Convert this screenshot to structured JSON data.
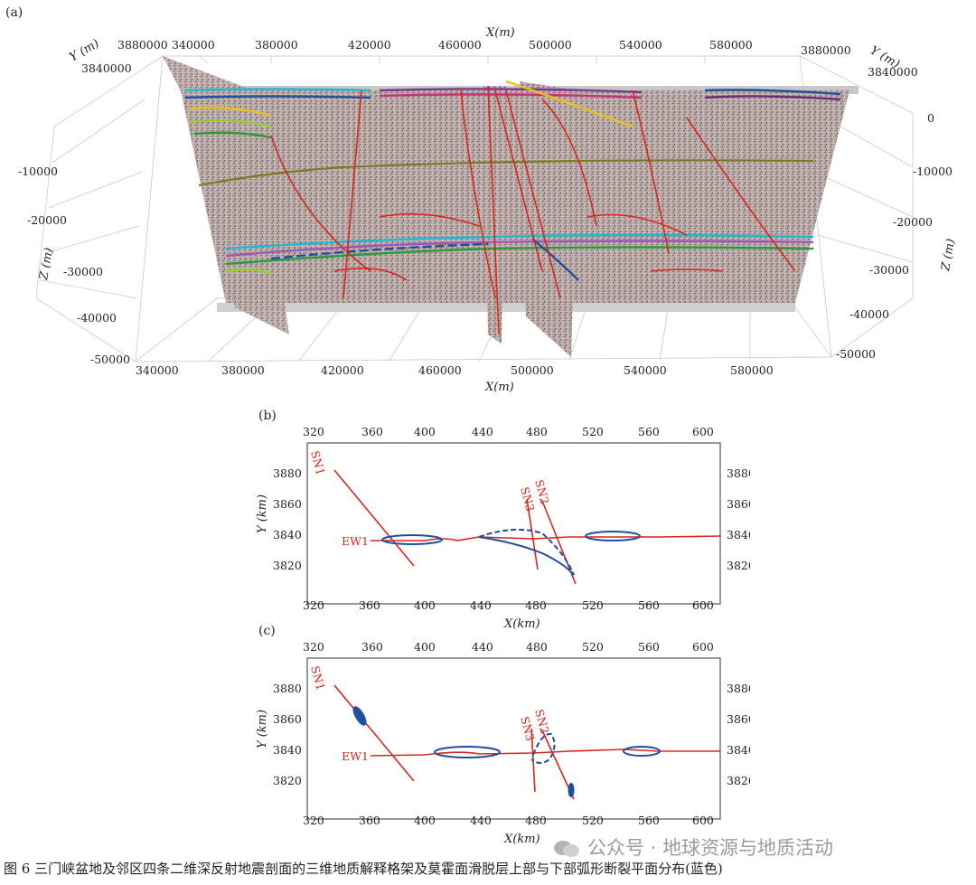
{
  "panels": {
    "a": {
      "label": "(a)",
      "x_title": "X(m)",
      "y_title": "Y (m)",
      "z_title": "Z (m)",
      "x_ticks": [
        "340000",
        "380000",
        "420000",
        "460000",
        "500000",
        "540000",
        "580000"
      ],
      "y_ticks": [
        "3880000",
        "3840000"
      ],
      "z_ticks_left": [
        "-10000",
        "-20000",
        "-30000",
        "-40000",
        "-50000"
      ],
      "z_ticks_right": [
        "0",
        "-10000",
        "-20000",
        "-30000",
        "-40000",
        "-50000"
      ]
    },
    "b": {
      "label": "(b)",
      "x_title": "X(km)",
      "y_title": "Y (km)",
      "x_ticks": [
        "320",
        "360",
        "400",
        "440",
        "480",
        "520",
        "560",
        "600"
      ],
      "y_ticks": [
        "3880",
        "3860",
        "3840",
        "3820"
      ],
      "faults": [
        "SN1",
        "SN2",
        "SN3",
        "EW1"
      ]
    },
    "c": {
      "label": "(c)",
      "x_title": "X(km)",
      "y_title": "Y (km)",
      "x_ticks": [
        "320",
        "360",
        "400",
        "440",
        "480",
        "520",
        "560",
        "600"
      ],
      "y_ticks": [
        "3880",
        "3860",
        "3840",
        "3820"
      ],
      "faults": [
        "SN1",
        "SN2",
        "SN3",
        "EW1"
      ]
    }
  },
  "caption": "图 6   三门峡盆地及邻区四条二维深反射地震剖面的三维地质解释格架及莫霍面滑脱层上部与下部弧形断裂平面分布(蓝色)",
  "watermark": "公众号 · 地球资源与地质活动",
  "colors": {
    "fault": "#d9261c",
    "arc_fault": "#1f4fa0",
    "grid": "#cfcfcf"
  }
}
